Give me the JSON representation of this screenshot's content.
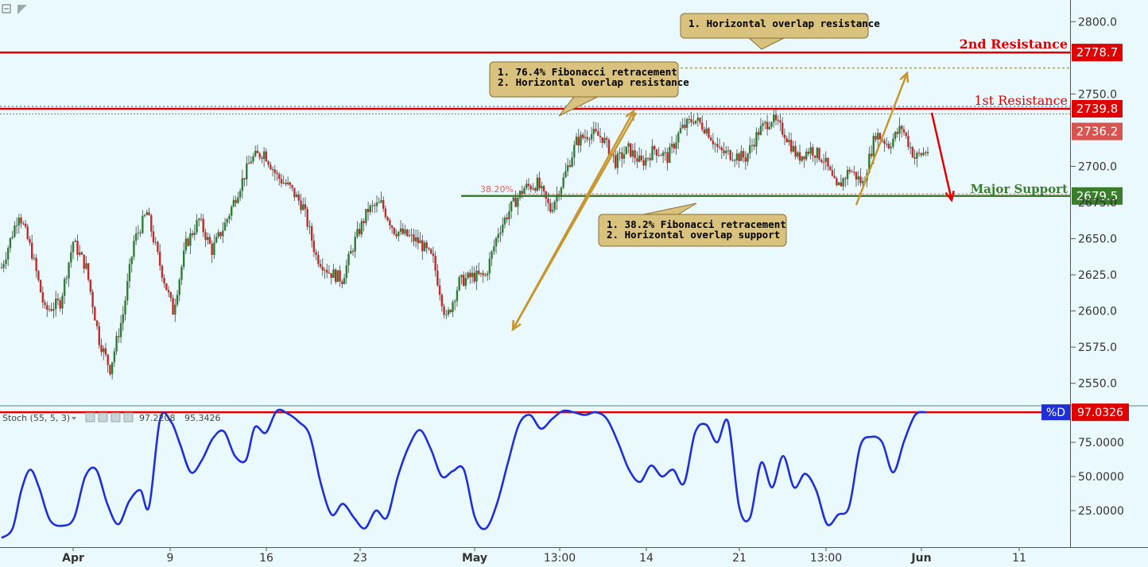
{
  "chart_data": {
    "type": "candlestick",
    "x_ticks": [
      "Apr",
      "9",
      "16",
      "23",
      "May",
      "13:00",
      "14",
      "21",
      "13:00",
      "Jun",
      "11"
    ],
    "price_ticks": [
      "2800.0",
      "2750.0",
      "2700.0",
      "2650.0",
      "2625.0",
      "2600.0",
      "2575.0",
      "2550.0"
    ],
    "price_ylim": [
      2535,
      2815
    ],
    "levels": {
      "second_resistance": {
        "label": "2nd Resistance",
        "value": 2778.7,
        "badge": "2778.7",
        "color": "#e00000"
      },
      "first_resistance": {
        "label": "1st Resistance",
        "value": 2739.8,
        "badge": "2739.8",
        "color": "#e00000"
      },
      "current_price": {
        "value": 2736.2,
        "badge": "2736.2",
        "color": "#d9534f"
      },
      "major_support": {
        "label": "Major Support",
        "value": 2679.5,
        "badge": "2679.5",
        "color": "#3a7d2a"
      },
      "fib_label": "38.20%",
      "partial_tick_label": "2675.0"
    },
    "callouts": [
      {
        "line1": "1. Horizontal overlap resistance",
        "line2": ""
      },
      {
        "line1": "1. 76.4% Fibonacci retracement",
        "line2": "2. Horizontal overlap resistance"
      },
      {
        "line1": "1. 38.2% Fibonacci retracement",
        "line2": "2. Horizontal overlap support"
      }
    ],
    "price_path": [
      [
        0,
        2630
      ],
      [
        8,
        2668
      ],
      [
        14,
        2640
      ],
      [
        20,
        2600
      ],
      [
        27,
        2606
      ],
      [
        33,
        2648
      ],
      [
        39,
        2630
      ],
      [
        45,
        2580
      ],
      [
        50,
        2560
      ],
      [
        56,
        2598
      ],
      [
        61,
        2648
      ],
      [
        67,
        2668
      ],
      [
        73,
        2632
      ],
      [
        79,
        2600
      ],
      [
        85,
        2646
      ],
      [
        91,
        2663
      ],
      [
        97,
        2642
      ],
      [
        103,
        2660
      ],
      [
        109,
        2683
      ],
      [
        115,
        2705
      ],
      [
        121,
        2710
      ],
      [
        127,
        2693
      ],
      [
        133,
        2685
      ],
      [
        139,
        2672
      ],
      [
        145,
        2638
      ],
      [
        151,
        2627
      ],
      [
        157,
        2622
      ],
      [
        163,
        2649
      ],
      [
        169,
        2670
      ],
      [
        175,
        2674
      ],
      [
        181,
        2656
      ],
      [
        187,
        2652
      ],
      [
        193,
        2647
      ],
      [
        199,
        2635
      ],
      [
        205,
        2594
      ],
      [
        211,
        2620
      ],
      [
        217,
        2624
      ],
      [
        223,
        2624
      ],
      [
        229,
        2655
      ],
      [
        235,
        2672
      ],
      [
        241,
        2685
      ],
      [
        247,
        2688
      ],
      [
        253,
        2670
      ],
      [
        259,
        2691
      ],
      [
        265,
        2717
      ],
      [
        271,
        2723
      ],
      [
        277,
        2720
      ],
      [
        283,
        2703
      ],
      [
        289,
        2712
      ],
      [
        295,
        2702
      ],
      [
        301,
        2712
      ],
      [
        307,
        2706
      ],
      [
        313,
        2725
      ],
      [
        319,
        2733
      ],
      [
        325,
        2726
      ],
      [
        331,
        2710
      ],
      [
        337,
        2708
      ],
      [
        343,
        2706
      ],
      [
        349,
        2724
      ],
      [
        355,
        2733
      ],
      [
        361,
        2723
      ],
      [
        367,
        2706
      ],
      [
        373,
        2712
      ],
      [
        379,
        2705
      ],
      [
        385,
        2684
      ],
      [
        391,
        2698
      ],
      [
        397,
        2688
      ],
      [
        403,
        2723
      ],
      [
        409,
        2715
      ],
      [
        415,
        2727
      ],
      [
        421,
        2706
      ],
      [
        427,
        2711
      ]
    ],
    "stoch": {
      "label": "Stoch (55, 5, 3)",
      "values_text": [
        "97.2208",
        "95.3426"
      ],
      "badge_label": "%D",
      "badge_value": "97.0326",
      "ticks": [
        "75.0000",
        "50.0000",
        "25.0000"
      ],
      "ylim": [
        0,
        100
      ],
      "overbought_line": 97,
      "series": [
        [
          0,
          5
        ],
        [
          5,
          12
        ],
        [
          9,
          40
        ],
        [
          13,
          55
        ],
        [
          17,
          42
        ],
        [
          22,
          18
        ],
        [
          28,
          14
        ],
        [
          33,
          20
        ],
        [
          38,
          50
        ],
        [
          43,
          55
        ],
        [
          48,
          30
        ],
        [
          53,
          15
        ],
        [
          58,
          32
        ],
        [
          63,
          40
        ],
        [
          67,
          28
        ],
        [
          72,
          92
        ],
        [
          77,
          90
        ],
        [
          81,
          74
        ],
        [
          86,
          53
        ],
        [
          91,
          62
        ],
        [
          96,
          78
        ],
        [
          101,
          83
        ],
        [
          106,
          65
        ],
        [
          111,
          62
        ],
        [
          115,
          86
        ],
        [
          120,
          82
        ],
        [
          125,
          98
        ],
        [
          130,
          96
        ],
        [
          135,
          90
        ],
        [
          140,
          80
        ],
        [
          145,
          45
        ],
        [
          150,
          22
        ],
        [
          155,
          30
        ],
        [
          160,
          20
        ],
        [
          165,
          12
        ],
        [
          170,
          25
        ],
        [
          175,
          20
        ],
        [
          180,
          50
        ],
        [
          185,
          72
        ],
        [
          190,
          84
        ],
        [
          195,
          70
        ],
        [
          200,
          50
        ],
        [
          205,
          54
        ],
        [
          210,
          55
        ],
        [
          215,
          20
        ],
        [
          220,
          12
        ],
        [
          225,
          30
        ],
        [
          230,
          60
        ],
        [
          235,
          88
        ],
        [
          240,
          95
        ],
        [
          245,
          85
        ],
        [
          250,
          92
        ],
        [
          255,
          98
        ],
        [
          260,
          97
        ],
        [
          265,
          95
        ],
        [
          270,
          97
        ],
        [
          275,
          92
        ],
        [
          280,
          75
        ],
        [
          285,
          55
        ],
        [
          290,
          46
        ],
        [
          295,
          58
        ],
        [
          300,
          50
        ],
        [
          305,
          55
        ],
        [
          310,
          45
        ],
        [
          315,
          82
        ],
        [
          320,
          88
        ],
        [
          325,
          75
        ],
        [
          330,
          90
        ],
        [
          335,
          28
        ],
        [
          340,
          20
        ],
        [
          345,
          60
        ],
        [
          350,
          42
        ],
        [
          355,
          65
        ],
        [
          360,
          42
        ],
        [
          365,
          52
        ],
        [
          370,
          40
        ],
        [
          375,
          15
        ],
        [
          380,
          22
        ],
        [
          385,
          28
        ],
        [
          390,
          72
        ],
        [
          395,
          79
        ],
        [
          400,
          75
        ],
        [
          405,
          53
        ],
        [
          410,
          76
        ],
        [
          415,
          95
        ],
        [
          420,
          97
        ]
      ]
    }
  }
}
